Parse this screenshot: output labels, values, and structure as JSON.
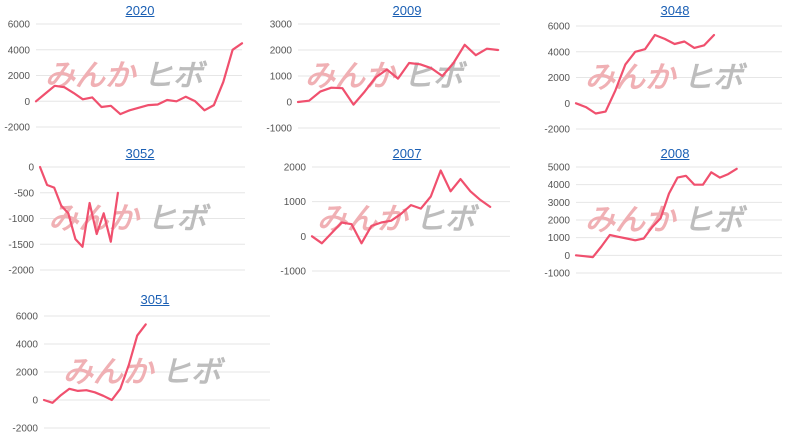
{
  "colors": {
    "line": "#f0506e",
    "title": "#1a5fb4",
    "watermark_left": "#f0b0b4",
    "watermark_right": "#bdbdbd"
  },
  "watermark": {
    "left": "みんか",
    "right": "ヒボ"
  },
  "chart_data": [
    {
      "type": "line",
      "title": "2020",
      "ylim": [
        -2000,
        6000
      ],
      "yticks": [
        -2000,
        0,
        2000,
        4000,
        6000
      ],
      "grid": true,
      "values": [
        0,
        600,
        1200,
        1100,
        650,
        150,
        300,
        -450,
        -350,
        -1000,
        -700,
        -500,
        -300,
        -250,
        100,
        0,
        350,
        0,
        -700,
        -300,
        1500,
        4000,
        4500
      ]
    },
    {
      "type": "line",
      "title": "2009",
      "ylim": [
        -1000,
        3000
      ],
      "yticks": [
        -1000,
        0,
        1000,
        2000,
        3000
      ],
      "grid": true,
      "values": [
        0,
        50,
        400,
        550,
        530,
        -100,
        400,
        950,
        1250,
        900,
        1500,
        1450,
        1300,
        1000,
        1500,
        2200,
        1800,
        2050,
        2000
      ]
    },
    {
      "type": "line",
      "title": "3048",
      "ylim": [
        -2000,
        6000
      ],
      "yticks": [
        -2000,
        0,
        2000,
        4000,
        6000
      ],
      "grid": true,
      "values": [
        0,
        -300,
        -800,
        -650,
        1000,
        3000,
        4000,
        4200,
        5300,
        5000,
        4600,
        4800,
        4300,
        4500,
        5300
      ]
    },
    {
      "type": "line",
      "title": "3052",
      "ylim": [
        -2000,
        0
      ],
      "yticks": [
        -2000,
        -1500,
        -1000,
        -500,
        0
      ],
      "grid": true,
      "values": [
        0,
        -350,
        -400,
        -750,
        -900,
        -1400,
        -1550,
        -700,
        -1300,
        -900,
        -1450,
        -500
      ]
    },
    {
      "type": "line",
      "title": "2007",
      "ylim": [
        -1000,
        2000
      ],
      "yticks": [
        -1000,
        0,
        1000,
        2000
      ],
      "grid": true,
      "values": [
        0,
        -200,
        100,
        400,
        350,
        -200,
        300,
        400,
        450,
        650,
        900,
        800,
        1150,
        1900,
        1300,
        1650,
        1300,
        1050,
        850
      ]
    },
    {
      "type": "line",
      "title": "2008",
      "ylim": [
        -1000,
        5000
      ],
      "yticks": [
        -1000,
        0,
        1000,
        2000,
        3000,
        4000,
        5000
      ],
      "grid": true,
      "values": [
        0,
        -50,
        -100,
        500,
        1150,
        1050,
        950,
        850,
        950,
        1600,
        2100,
        3500,
        4400,
        4500,
        4000,
        4000,
        4700,
        4400,
        4600,
        4900
      ]
    },
    {
      "type": "line",
      "title": "3051",
      "ylim": [
        -2000,
        6000
      ],
      "yticks": [
        -2000,
        0,
        2000,
        4000,
        6000
      ],
      "grid": true,
      "values": [
        0,
        -200,
        350,
        800,
        650,
        700,
        550,
        300,
        0,
        800,
        2500,
        4600,
        5400
      ]
    }
  ]
}
